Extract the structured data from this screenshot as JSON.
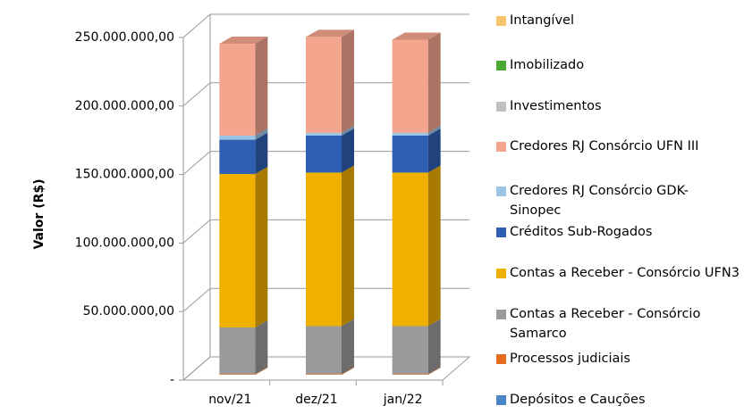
{
  "chart_data": {
    "type": "bar3d_stacked",
    "y_label": "Valor (R$)",
    "categories": [
      "nov/21",
      "dez/21",
      "jan/22"
    ],
    "ylim": [
      0,
      250000000
    ],
    "yticks": [
      {
        "value": 0,
        "label": "-"
      },
      {
        "value": 50000000,
        "label": "50.000.000,00"
      },
      {
        "value": 100000000,
        "label": "100.000.000,00"
      },
      {
        "value": 150000000,
        "label": "150.000.000,00"
      },
      {
        "value": 200000000,
        "label": "200.000.000,00"
      },
      {
        "value": 250000000,
        "label": "250.000.000,00"
      }
    ],
    "grid": true,
    "legend": "right",
    "series": [
      {
        "name": "Depósitos e Cauções",
        "color": "#4a86c5",
        "values": [
          0,
          0,
          0
        ]
      },
      {
        "name": "Processos judiciais",
        "color": "#e36c1e",
        "values": [
          500000,
          500000,
          500000
        ]
      },
      {
        "name": "Contas a Receber - Consórcio Samarco",
        "color": "#9a9a9a",
        "values": [
          34000000,
          35000000,
          35000000
        ]
      },
      {
        "name": "Contas a Receber - Consórcio UFN3",
        "color": "#f0b000",
        "values": [
          112000000,
          112000000,
          112000000
        ]
      },
      {
        "name": "Créditos Sub-Rogados",
        "color": "#2f5fb3",
        "values": [
          25000000,
          27000000,
          27000000
        ]
      },
      {
        "name": "Credores RJ Consórcio GDK-Sinopec",
        "color": "#9dc3e6",
        "values": [
          3000000,
          2000000,
          2000000
        ]
      },
      {
        "name": "Credores RJ Consórcio UFN III",
        "color": "#f4a58e",
        "values": [
          67000000,
          70000000,
          68000000
        ]
      },
      {
        "name": "Investimentos",
        "color": "#c0c0c0",
        "values": [
          0,
          0,
          0
        ]
      },
      {
        "name": "Imobilizado",
        "color": "#4aa832",
        "values": [
          0,
          0,
          0
        ]
      },
      {
        "name": "Intangível",
        "color": "#f7c46c",
        "values": [
          0,
          0,
          0
        ]
      }
    ]
  }
}
